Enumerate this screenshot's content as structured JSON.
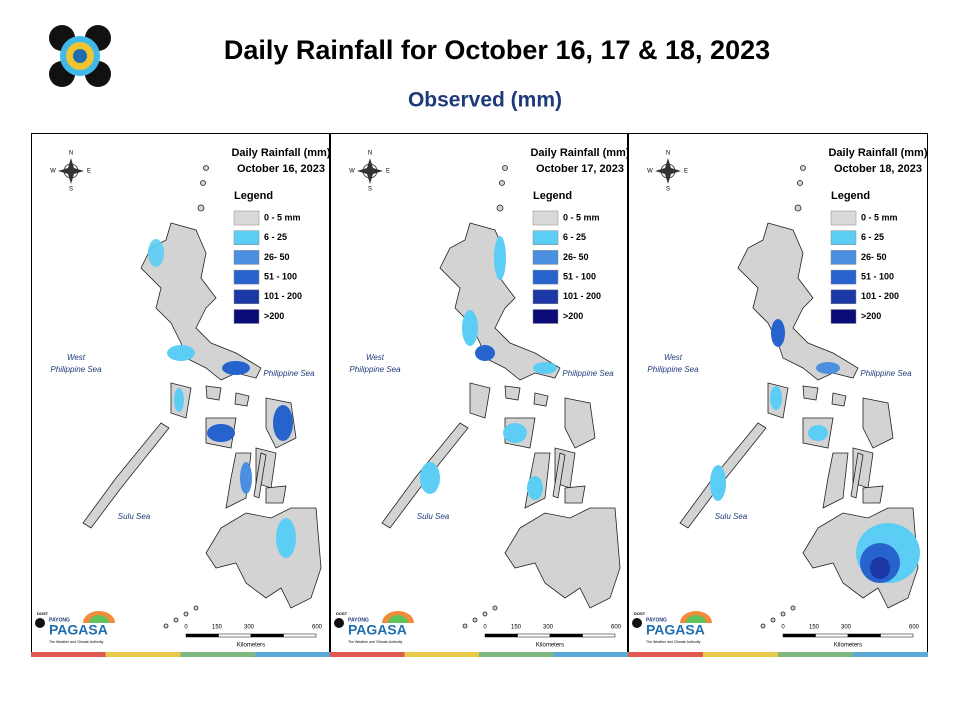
{
  "header": {
    "title": "Daily Rainfall for October 16, 17 & 18, 2023",
    "subtitle": "Observed (mm)"
  },
  "panels": [
    {
      "title": "Daily Rainfall (mm)",
      "date": "October 16, 2023",
      "legend_title": "Legend",
      "legend": [
        {
          "label": "0 - 5 mm",
          "color": "#d9d9d9"
        },
        {
          "label": "6 - 25",
          "color": "#5ccdf5"
        },
        {
          "label": "26- 50",
          "color": "#4a8fe0"
        },
        {
          "label": "51 - 100",
          "color": "#2763cc"
        },
        {
          "label": "101 - 200",
          "color": "#1c37a6"
        },
        {
          "label": ">200",
          "color": "#0b0b78"
        }
      ],
      "compass": [
        "N",
        "W",
        "E",
        "S"
      ],
      "seas": {
        "west": [
          "West",
          "Philippine Sea"
        ],
        "east": "Philippine Sea",
        "south": "Sulu Sea"
      },
      "scale": {
        "ticks": [
          "0",
          "150",
          "300",
          "600"
        ],
        "unit": "Kilometers"
      },
      "logo": {
        "top": "DOST",
        "mid": "PAYONG",
        "name": "PAGASA",
        "tagline": "The Weather and Climate Authority"
      }
    },
    {
      "title": "Daily Rainfall (mm)",
      "date": "October 17, 2023",
      "legend_title": "Legend",
      "legend": [
        {
          "label": "0 - 5 mm",
          "color": "#d9d9d9"
        },
        {
          "label": "6 - 25",
          "color": "#5ccdf5"
        },
        {
          "label": "26- 50",
          "color": "#4a8fe0"
        },
        {
          "label": "51 - 100",
          "color": "#2763cc"
        },
        {
          "label": "101 - 200",
          "color": "#1c37a6"
        },
        {
          "label": ">200",
          "color": "#0b0b78"
        }
      ],
      "compass": [
        "N",
        "W",
        "E",
        "S"
      ],
      "seas": {
        "west": [
          "West",
          "Philippine Sea"
        ],
        "east": "Philippine Sea",
        "south": "Sulu Sea"
      },
      "scale": {
        "ticks": [
          "0",
          "150",
          "300",
          "600"
        ],
        "unit": "Kilometers"
      },
      "logo": {
        "top": "DOST",
        "mid": "PAYONG",
        "name": "PAGASA",
        "tagline": "The Weather and Climate Authority"
      }
    },
    {
      "title": "Daily Rainfall (mm)",
      "date": "October 18, 2023",
      "legend_title": "Legend",
      "legend": [
        {
          "label": "0 - 5 mm",
          "color": "#d9d9d9"
        },
        {
          "label": "6 - 25",
          "color": "#5ccdf5"
        },
        {
          "label": "26- 50",
          "color": "#4a8fe0"
        },
        {
          "label": "51 - 100",
          "color": "#2763cc"
        },
        {
          "label": "101 - 200",
          "color": "#1c37a6"
        },
        {
          "label": ">200",
          "color": "#0b0b78"
        }
      ],
      "compass": [
        "N",
        "W",
        "E",
        "S"
      ],
      "seas": {
        "west": [
          "West",
          "Philippine Sea"
        ],
        "east": "Philippine Sea",
        "south": "Sulu Sea"
      },
      "scale": {
        "ticks": [
          "0",
          "150",
          "300",
          "600"
        ],
        "unit": "Kilometers"
      },
      "logo": {
        "top": "DOST",
        "mid": "PAYONG",
        "name": "PAGASA",
        "tagline": "The Weather and Climate Authority"
      }
    }
  ]
}
